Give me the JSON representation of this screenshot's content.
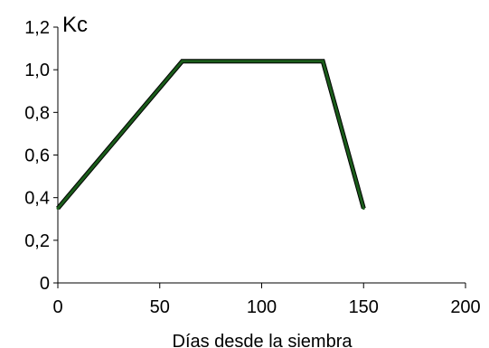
{
  "chart_data": {
    "type": "line",
    "title": "",
    "xlabel": "Días desde la siembra",
    "ylabel": "Kc",
    "xlim": [
      0,
      200
    ],
    "ylim": [
      0,
      1.2
    ],
    "x_ticks": [
      0,
      50,
      100,
      150,
      200
    ],
    "x_tick_labels": [
      "0",
      "50",
      "100",
      "150",
      "200"
    ],
    "y_ticks": [
      0,
      0.2,
      0.4,
      0.6,
      0.8,
      1.0,
      1.2
    ],
    "y_tick_labels": [
      "0",
      "0,2",
      "0,4",
      "0,6",
      "0,8",
      "1,0",
      "1,2"
    ],
    "grid": false,
    "legend": "none",
    "series": [
      {
        "color": "#1a5c1a",
        "x": [
          0,
          61,
          130,
          150
        ],
        "y": [
          0.35,
          1.04,
          1.04,
          0.35
        ]
      }
    ]
  }
}
